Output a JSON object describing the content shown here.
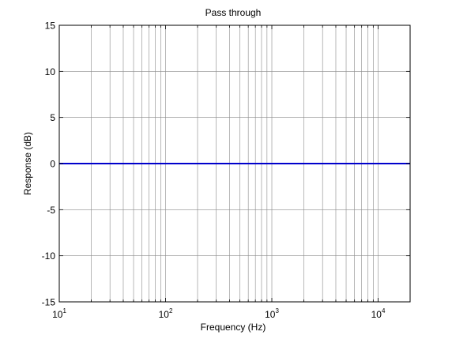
{
  "chart_data": {
    "type": "line",
    "title": "Pass through",
    "xlabel": "Frequency (Hz)",
    "ylabel": "Response (dB)",
    "x_scale": "log",
    "xlim": [
      10,
      20000
    ],
    "ylim": [
      -15,
      15
    ],
    "x_ticks": [
      {
        "value": 10,
        "base": "10",
        "exp": "1"
      },
      {
        "value": 100,
        "base": "10",
        "exp": "2"
      },
      {
        "value": 1000,
        "base": "10",
        "exp": "3"
      },
      {
        "value": 10000,
        "base": "10",
        "exp": "4"
      }
    ],
    "y_ticks": [
      {
        "value": 15,
        "label": "15"
      },
      {
        "value": 10,
        "label": "10"
      },
      {
        "value": 5,
        "label": "5"
      },
      {
        "value": 0,
        "label": "0"
      },
      {
        "value": -5,
        "label": "-5"
      },
      {
        "value": -10,
        "label": "-10"
      },
      {
        "value": -15,
        "label": "-15"
      }
    ],
    "grid": true,
    "series": [
      {
        "color": "#0000cc",
        "x": [
          10,
          20000
        ],
        "y": [
          0,
          0
        ]
      }
    ]
  }
}
